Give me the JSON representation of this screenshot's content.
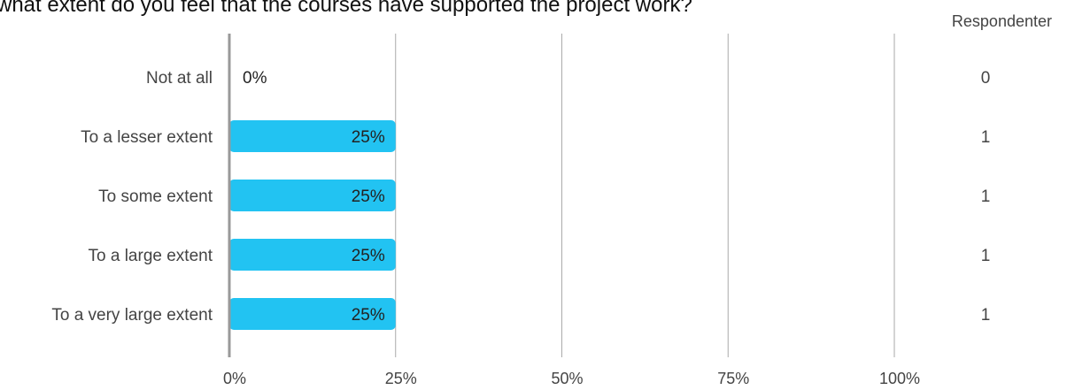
{
  "chart_data": {
    "type": "bar",
    "orientation": "horizontal",
    "title": "what extent do you feel that the courses have supported the project work?",
    "categories": [
      "Not at all",
      "To a lesser extent",
      "To some extent",
      "To a large extent",
      "To a very large extent"
    ],
    "values": [
      0,
      25,
      25,
      25,
      25
    ],
    "value_labels": [
      "0%",
      "25%",
      "25%",
      "25%",
      "25%"
    ],
    "counts": [
      0,
      1,
      1,
      1,
      1
    ],
    "counts_header": "Respondenter",
    "xlim": [
      0,
      100
    ],
    "xticks": [
      0,
      25,
      50,
      75,
      100
    ],
    "xtick_labels": [
      "0%",
      "25%",
      "50%",
      "75%",
      "100%"
    ],
    "grid": true,
    "bar_color": "#22C3F2",
    "grid_color": "#AAAAAA"
  }
}
